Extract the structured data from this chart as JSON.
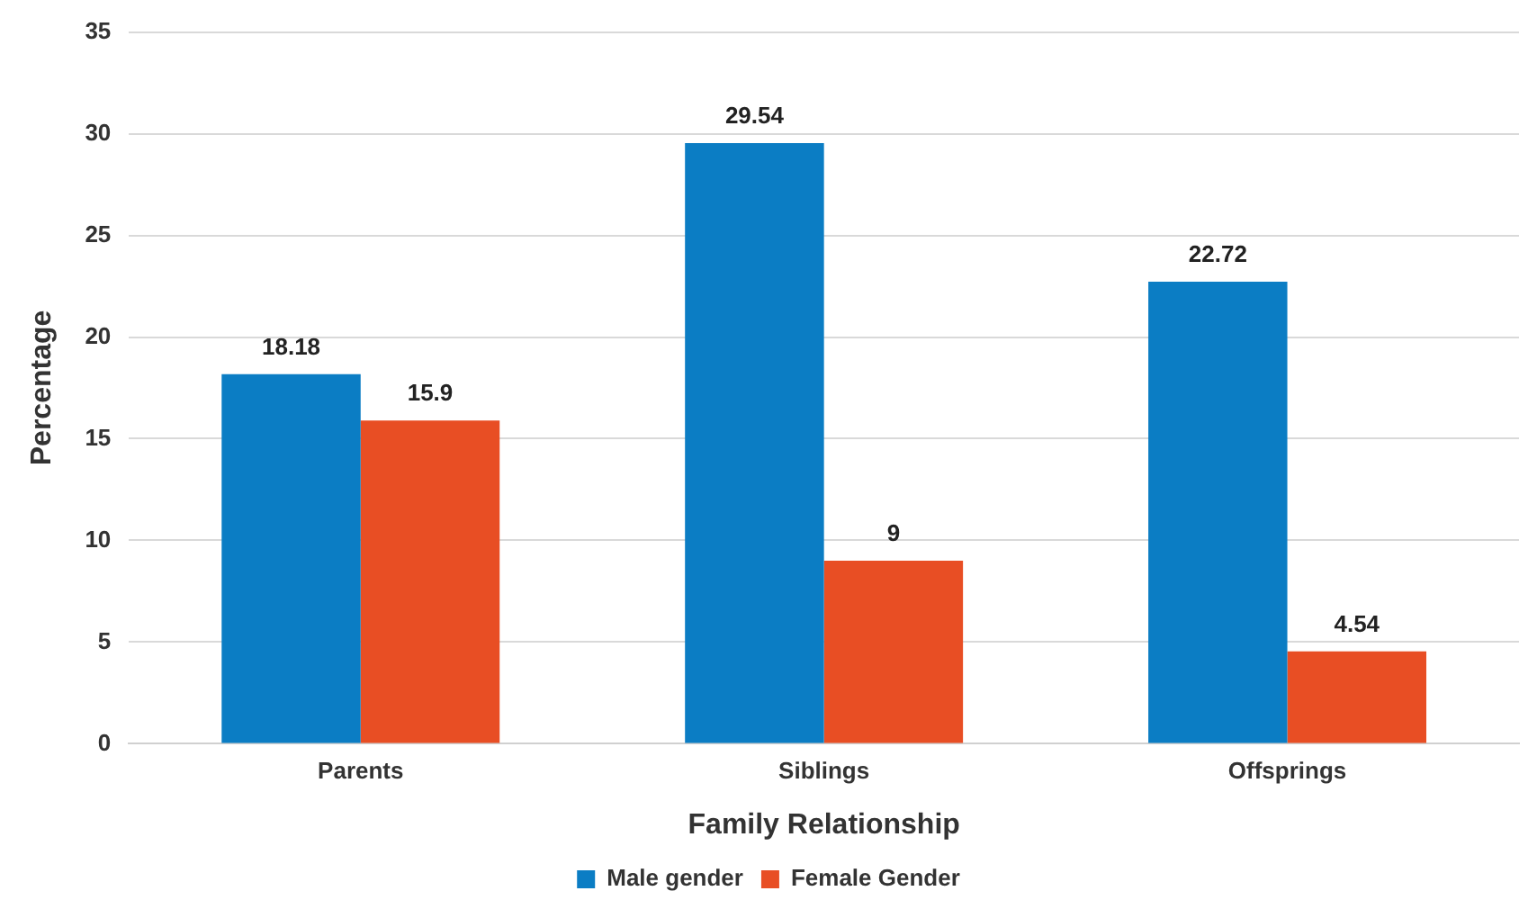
{
  "chart_data": {
    "type": "bar",
    "xlabel": "Family Relationship",
    "ylabel": "Percentage",
    "categories": [
      "Parents",
      "Siblings",
      "Offsprings"
    ],
    "series": [
      {
        "name": "Male gender",
        "color": "#0b7dc4",
        "values": [
          18.18,
          29.54,
          22.72
        ]
      },
      {
        "name": "Female Gender",
        "color": "#e84e24",
        "values": [
          15.9,
          9,
          4.54
        ]
      }
    ],
    "ylim": [
      0,
      35
    ],
    "yticks": [
      0,
      5,
      10,
      15,
      20,
      25,
      30,
      35
    ],
    "grid": "y",
    "legend": "bottom",
    "data_labels": true
  }
}
